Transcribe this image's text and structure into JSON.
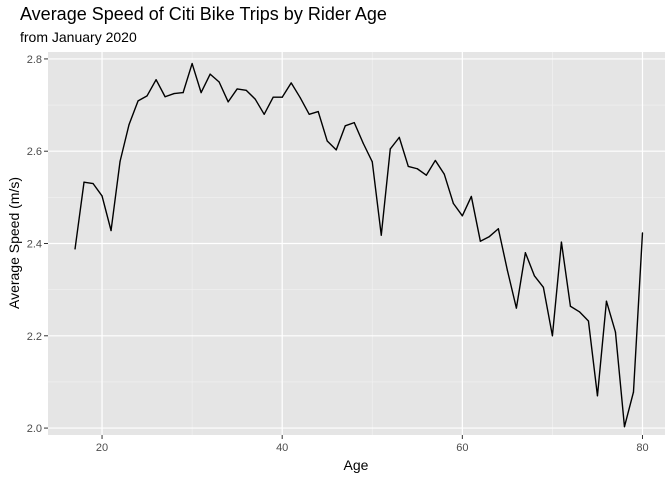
{
  "chart_data": {
    "type": "line",
    "title": "Average Speed of Citi Bike Trips by Rider Age",
    "subtitle": "from January 2020",
    "xlabel": "Age",
    "ylabel": "Average Speed (m/s)",
    "xlim": [
      14,
      82.5
    ],
    "ylim": [
      1.985,
      2.815
    ],
    "xticks": [
      20,
      40,
      60,
      80
    ],
    "yticks": [
      2.0,
      2.2,
      2.4,
      2.6,
      2.8
    ],
    "ytick_labels": [
      "2.0",
      "2.2",
      "2.4",
      "2.6",
      "2.8"
    ],
    "grid": true,
    "legend": "none",
    "colors": {
      "panel": "#e5e5e5",
      "grid_major": "#ffffff",
      "grid_minor": "#f2f2f2",
      "line": "#000000"
    },
    "series": [
      {
        "x": [
          17,
          18,
          19,
          20,
          21,
          22,
          23,
          24,
          25,
          26,
          27,
          28,
          29,
          30,
          31,
          32,
          33,
          34,
          35,
          36,
          37,
          38,
          39,
          40,
          41,
          42,
          43,
          44,
          45,
          46,
          47,
          48,
          49,
          50,
          51,
          52,
          53,
          54,
          55,
          56,
          57,
          58,
          59,
          60,
          61,
          62,
          63,
          64,
          65,
          66,
          67,
          68,
          69,
          70,
          71,
          72,
          73,
          74,
          75,
          76,
          77,
          78,
          79,
          80
        ],
        "y": [
          2.388,
          2.533,
          2.53,
          2.503,
          2.428,
          2.578,
          2.658,
          2.709,
          2.72,
          2.755,
          2.718,
          2.725,
          2.727,
          2.79,
          2.727,
          2.767,
          2.75,
          2.707,
          2.735,
          2.732,
          2.713,
          2.68,
          2.717,
          2.717,
          2.748,
          2.716,
          2.68,
          2.686,
          2.622,
          2.603,
          2.655,
          2.662,
          2.617,
          2.577,
          2.418,
          2.605,
          2.63,
          2.567,
          2.562,
          2.548,
          2.58,
          2.55,
          2.487,
          2.46,
          2.502,
          2.405,
          2.415,
          2.432,
          2.342,
          2.26,
          2.38,
          2.33,
          2.305,
          2.2,
          2.403,
          2.264,
          2.252,
          2.232,
          2.07,
          2.275,
          2.208,
          2.003,
          2.078,
          2.423
        ]
      }
    ]
  }
}
